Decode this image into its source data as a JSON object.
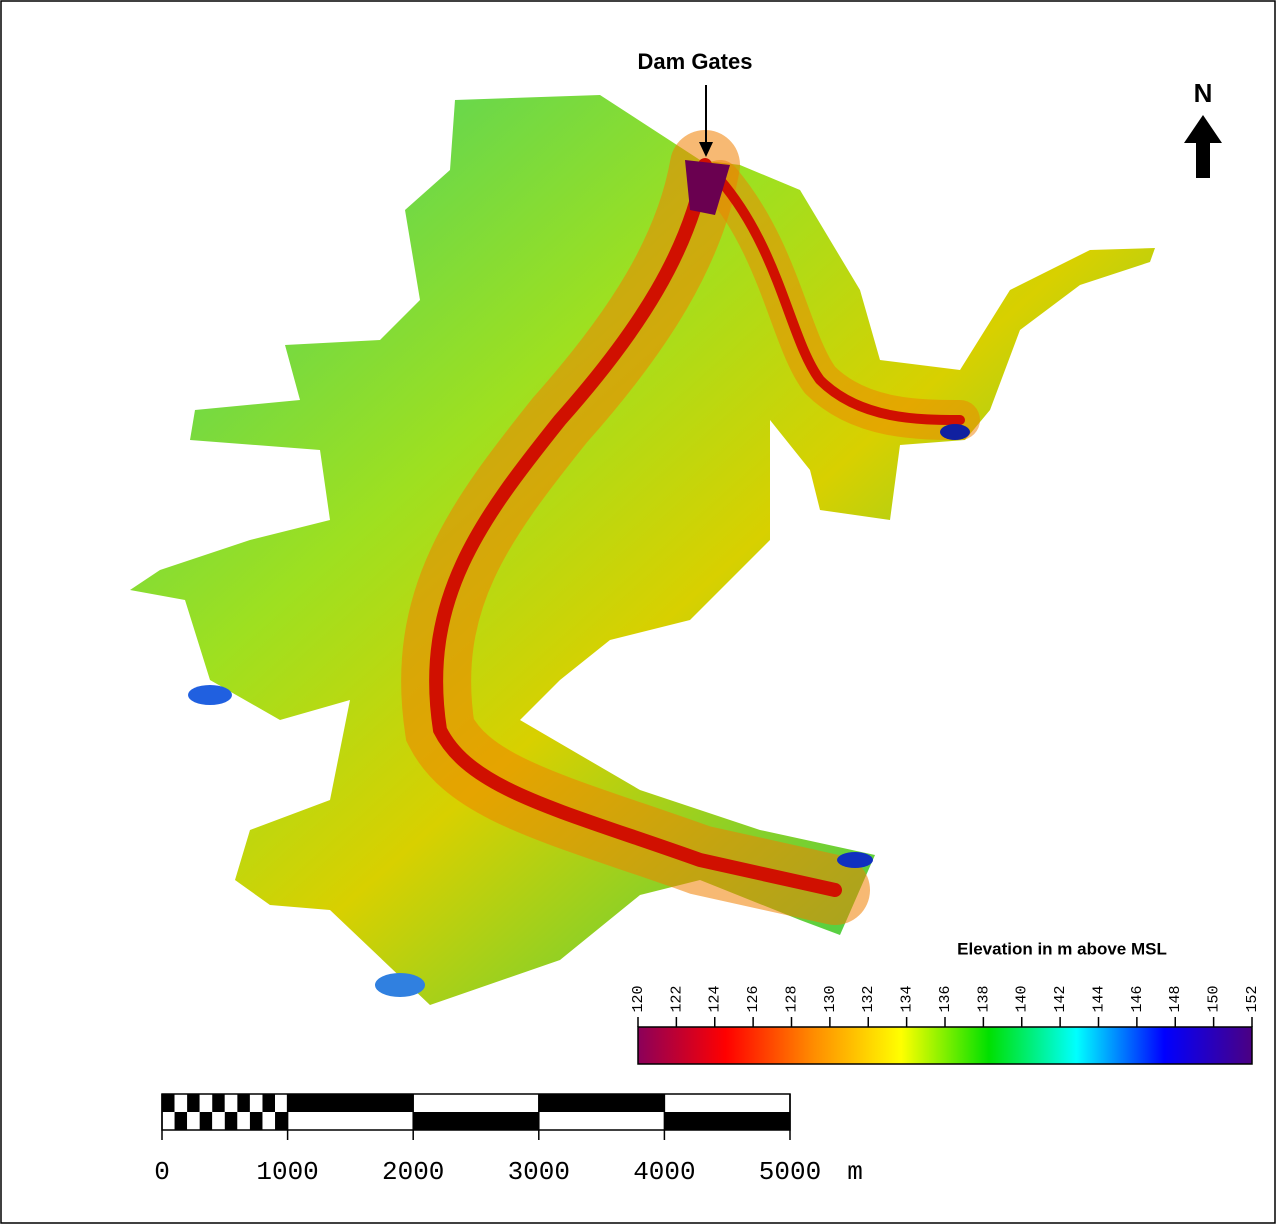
{
  "annotation": "Dam Gates",
  "north_label": "N",
  "legend": {
    "title": "Elevation in m above MSL",
    "range": [
      120,
      152
    ],
    "ticks": [
      120,
      122,
      124,
      126,
      128,
      130,
      132,
      134,
      136,
      138,
      140,
      142,
      144,
      146,
      148,
      150,
      152
    ],
    "colors": [
      "#8b005a",
      "#ff0000",
      "#ff8c00",
      "#ffff00",
      "#00e000",
      "#00ffff",
      "#0000ff",
      "#4b0082"
    ]
  },
  "scale_bar": {
    "range": [
      0,
      5000
    ],
    "ticks": [
      0,
      1000,
      2000,
      3000,
      4000,
      5000
    ],
    "unit": "m"
  }
}
